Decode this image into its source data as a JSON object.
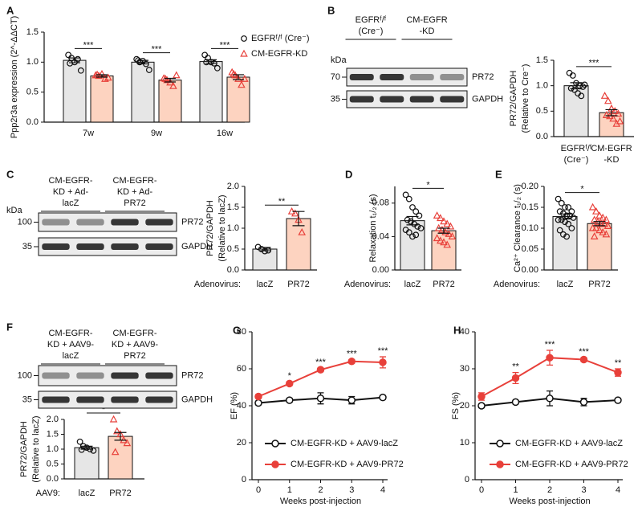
{
  "chart_data": [
    {
      "type": "bar",
      "panel": "A",
      "ylabel": "Ppp2r3a expression (2^-ΔΔCT)",
      "categories": [
        "7w",
        "9w",
        "16w"
      ],
      "series": [
        {
          "name": "EGFRᶠ/ᶠ (Cre⁻)",
          "color": "#e6e6e6",
          "marker_color": "#111111",
          "marker": "circle",
          "values": [
            1.03,
            1.0,
            1.01
          ],
          "errors": [
            0.04,
            0.03,
            0.03
          ],
          "points": [
            [
              1.12,
              1.07,
              1.0,
              1.05,
              0.86,
              0.98
            ],
            [
              1.05,
              1.0,
              1.02,
              0.97,
              0.87,
              1.03
            ],
            [
              1.12,
              1.07,
              1.0,
              0.98,
              0.9,
              1.0
            ]
          ]
        },
        {
          "name": "CM-EGFR-KD",
          "color": "#fdd3c0",
          "marker_color": "#e8403a",
          "marker": "triangle",
          "values": [
            0.77,
            0.7,
            0.75
          ],
          "errors": [
            0.02,
            0.03,
            0.04
          ],
          "points": [
            [
              0.78,
              0.77,
              0.8,
              0.72,
              0.74,
              0.79
            ],
            [
              0.73,
              0.7,
              0.66,
              0.6,
              0.78,
              0.72
            ],
            [
              0.83,
              0.78,
              0.72,
              0.62,
              0.72,
              0.8
            ]
          ]
        }
      ],
      "annotations": [
        "***",
        "***",
        "***"
      ],
      "ylim": [
        0,
        1.5
      ],
      "yticks": [
        {
          "value": 0,
          "label": "0.0"
        },
        0.5,
        {
          "value": 1,
          "label": "1.0"
        },
        1.5
      ]
    },
    {
      "type": "bar",
      "ylabel": [
        "PR72/GAPDH",
        "(Relative to Cre⁻)"
      ],
      "categories": [
        [
          "EGFRᶠ/ᶠ",
          "(Cre⁻)"
        ],
        [
          "CM-EGFR",
          "-KD"
        ]
      ],
      "values": [
        1.0,
        0.47
      ],
      "errors": [
        0.06,
        0.06
      ],
      "colors": [
        "#e6e6e6",
        "#fdd3c0"
      ],
      "marker_colors": [
        "#111111",
        "#e8403a"
      ],
      "markers": [
        "circle",
        "triangle"
      ],
      "points": [
        [
          1.25,
          1.2,
          1.05,
          1.0,
          0.98,
          0.95,
          0.92,
          0.85,
          0.8,
          1.02
        ],
        [
          0.8,
          0.7,
          0.55,
          0.5,
          0.45,
          0.42,
          0.4,
          0.35,
          0.25,
          0.3
        ]
      ],
      "annotation": "***",
      "ylim": [
        0,
        1.5
      ],
      "yticks": [
        {
          "value": 0,
          "label": "0.0"
        },
        0.5,
        {
          "value": 1,
          "label": "1.0"
        },
        1.5
      ]
    },
    {
      "type": "bar",
      "ylabel": [
        "PR72/GAPDH",
        "(Relative to lacZ)"
      ],
      "x_prefix": "Adenovirus:",
      "categories": [
        "lacZ",
        "PR72"
      ],
      "values": [
        0.5,
        1.23
      ],
      "errors": [
        0.04,
        0.17
      ],
      "colors": [
        "#e6e6e6",
        "#fdd3c0"
      ],
      "marker_colors": [
        "#111111",
        "#e8403a"
      ],
      "markers": [
        "circle",
        "triangle"
      ],
      "points": [
        [
          0.55,
          0.5,
          0.45,
          0.47
        ],
        [
          1.4,
          1.35,
          1.2,
          0.9
        ]
      ],
      "annotation": "**",
      "ylim": [
        0,
        2
      ],
      "yticks": [
        {
          "value": 0,
          "label": "0.0"
        },
        0.5,
        {
          "value": 1,
          "label": "1.0"
        },
        1.5,
        {
          "value": 2,
          "label": "2.0"
        }
      ]
    },
    {
      "type": "bar",
      "panel": "D",
      "ylabel": "Relaxation t₁/₂ (s)",
      "x_prefix": "Adenovirus:",
      "categories": [
        "lacZ",
        "PR72"
      ],
      "values": [
        0.059,
        0.047
      ],
      "errors": [
        0.005,
        0.003
      ],
      "colors": [
        "#e6e6e6",
        "#fdd3c0"
      ],
      "marker_colors": [
        "#111111",
        "#e8403a"
      ],
      "markers": [
        "circle",
        "triangle"
      ],
      "points": [
        [
          0.09,
          0.085,
          0.075,
          0.07,
          0.065,
          0.06,
          0.058,
          0.055,
          0.052,
          0.05,
          0.048,
          0.045,
          0.04,
          0.042
        ],
        [
          0.065,
          0.062,
          0.058,
          0.055,
          0.052,
          0.05,
          0.048,
          0.045,
          0.043,
          0.04,
          0.038,
          0.035,
          0.033,
          0.03
        ]
      ],
      "annotation": "*",
      "ylim": [
        0,
        0.1
      ],
      "yticks": [
        {
          "value": 0,
          "label": "0.00"
        },
        {
          "value": 0.04,
          "label": "0.04"
        },
        {
          "value": 0.08,
          "label": "0.08"
        }
      ]
    },
    {
      "type": "bar",
      "panel": "E",
      "ylabel": "Ca²⁺ Clearance t₁/₂ (s)",
      "x_prefix": "Adenovirus:",
      "categories": [
        "lacZ",
        "PR72"
      ],
      "values": [
        0.128,
        0.111
      ],
      "errors": [
        0.006,
        0.005
      ],
      "colors": [
        "#e6e6e6",
        "#fdd3c0"
      ],
      "marker_colors": [
        "#111111",
        "#e8403a"
      ],
      "markers": [
        "circle",
        "triangle"
      ],
      "points": [
        [
          0.17,
          0.16,
          0.15,
          0.15,
          0.14,
          0.14,
          0.135,
          0.13,
          0.13,
          0.125,
          0.12,
          0.12,
          0.115,
          0.11,
          0.1,
          0.095,
          0.085,
          0.08
        ],
        [
          0.15,
          0.14,
          0.13,
          0.125,
          0.12,
          0.12,
          0.115,
          0.11,
          0.11,
          0.105,
          0.1,
          0.1,
          0.095,
          0.09,
          0.085,
          0.08
        ]
      ],
      "annotation": "*",
      "ylim": [
        0,
        0.2
      ],
      "yticks": [
        {
          "value": 0,
          "label": "0.00"
        },
        {
          "value": 0.05,
          "label": "0.05"
        },
        {
          "value": 0.1,
          "label": "0.10"
        },
        {
          "value": 0.15,
          "label": "0.15"
        },
        {
          "value": 0.2,
          "label": "0.20"
        }
      ]
    },
    {
      "type": "bar",
      "ylabel": [
        "PR72/GAPDH",
        "(Relative to lacZ)"
      ],
      "x_prefix": "AAV9:",
      "categories": [
        "lacZ",
        "PR72"
      ],
      "values": [
        1.05,
        1.43
      ],
      "errors": [
        0.05,
        0.13
      ],
      "colors": [
        "#e6e6e6",
        "#fdd3c0"
      ],
      "marker_colors": [
        "#111111",
        "#e8403a"
      ],
      "markers": [
        "circle",
        "triangle"
      ],
      "points": [
        [
          1.25,
          1.1,
          1.05,
          1.0,
          0.95,
          0.98
        ],
        [
          2.0,
          1.6,
          1.5,
          1.3,
          1.2,
          0.9
        ]
      ],
      "annotation": "*",
      "ylim": [
        0,
        2
      ],
      "yticks": [
        {
          "value": 0,
          "label": "0.0"
        },
        0.5,
        {
          "value": 1,
          "label": "1.0"
        },
        1.5,
        {
          "value": 2,
          "label": "2.0"
        }
      ]
    },
    {
      "type": "line",
      "panel": "G",
      "xlabel": "Weeks post-injection",
      "ylabel": "EF (%)",
      "x": [
        0,
        1,
        2,
        3,
        4
      ],
      "series": [
        {
          "name": "CM-EGFR-KD + AAV9-lacZ",
          "color": "#111111",
          "filled": false,
          "values": [
            41.5,
            43,
            44,
            43,
            44.5
          ],
          "errors": [
            1,
            1,
            3,
            2,
            1
          ]
        },
        {
          "name": "CM-EGFR-KD + AAV9-PR72",
          "color": "#e8403a",
          "filled": true,
          "values": [
            45,
            52,
            59.5,
            64,
            63.5
          ],
          "errors": [
            1,
            1,
            1,
            1,
            3
          ]
        }
      ],
      "annotations": [
        null,
        "*",
        "***",
        "***",
        "***"
      ],
      "xlim": [
        0,
        4
      ],
      "xticks": [
        0,
        1,
        2,
        3,
        4
      ],
      "ylim": [
        0,
        80
      ],
      "yticks": [
        0,
        20,
        40,
        60,
        80
      ]
    },
    {
      "type": "line",
      "panel": "H",
      "xlabel": "Weeks post-injection",
      "ylabel": "FS (%)",
      "x": [
        0,
        1,
        2,
        3,
        4
      ],
      "series": [
        {
          "name": "CM-EGFR-KD + AAV9-lacZ",
          "color": "#111111",
          "filled": false,
          "values": [
            20,
            21,
            22,
            21,
            21.5
          ],
          "errors": [
            0.5,
            0.5,
            2,
            1,
            0.5
          ]
        },
        {
          "name": "CM-EGFR-KD + AAV9-PR72",
          "color": "#e8403a",
          "filled": true,
          "values": [
            22.5,
            27.5,
            33,
            32.5,
            29
          ],
          "errors": [
            1,
            1.5,
            2,
            0.5,
            1
          ]
        }
      ],
      "annotations": [
        null,
        "**",
        "***",
        "***",
        "**"
      ],
      "xlim": [
        0,
        4
      ],
      "xticks": [
        0,
        1,
        2,
        3,
        4
      ],
      "ylim": [
        0,
        40
      ],
      "yticks": [
        0,
        10,
        20,
        30,
        40
      ]
    }
  ],
  "blots": [
    {
      "panel": "B",
      "kda": "kDa",
      "markers": [
        "70",
        "35"
      ],
      "rows": [
        "PR72",
        "GAPDH"
      ],
      "lanes": [
        [
          "EGFRᶠ/ᶠ",
          "(Cre⁻)"
        ],
        [
          "CM-EGFR",
          "-KD"
        ]
      ]
    },
    {
      "panel": "C",
      "kda": "kDa",
      "markers": [
        "100",
        "35"
      ],
      "rows": [
        "PR72",
        "GAPDH"
      ],
      "lanes": [
        [
          "CM-EGFR-",
          "KD + Ad-",
          "lacZ"
        ],
        [
          "CM-EGFR-",
          "KD + Ad-",
          "PR72"
        ]
      ]
    },
    {
      "panel": "F",
      "markers": [
        "100",
        "35"
      ],
      "rows": [
        "PR72",
        "GAPDH"
      ],
      "lanes": [
        [
          "CM-EGFR-",
          "KD + AAV9-",
          "lacZ"
        ],
        [
          "CM-EGFR-",
          "KD + AAV9-",
          "PR72"
        ]
      ]
    }
  ]
}
